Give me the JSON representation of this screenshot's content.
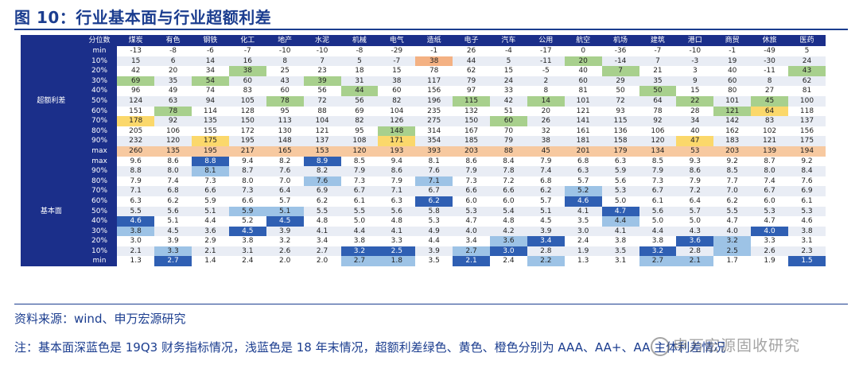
{
  "title": "图 10：行业基本面与行业超额利差",
  "header_label": "分位数",
  "industries": [
    "煤炭",
    "有色",
    "钢铁",
    "化工",
    "地产",
    "水泥",
    "机械",
    "电气",
    "造纸",
    "电子",
    "汽车",
    "公用",
    "航空",
    "机场",
    "建筑",
    "港口",
    "商贸",
    "休旅",
    "医药"
  ],
  "sections": [
    {
      "name": "超额利差",
      "rows": [
        {
          "label": "min",
          "values": [
            "-13",
            "-8",
            "-6",
            "-7",
            "-10",
            "-10",
            "-8",
            "-29",
            "-1",
            "26",
            "-4",
            "-17",
            "0",
            "-36",
            "-7",
            "-10",
            "-1",
            "-49",
            "5"
          ]
        },
        {
          "label": "10%",
          "values": [
            "15",
            "6",
            "14",
            "16",
            "8",
            "7",
            "5",
            "-7",
            "38",
            "44",
            "5",
            "-11",
            "20",
            "-14",
            "7",
            "-3",
            "19",
            "-30",
            "24"
          ]
        },
        {
          "label": "20%",
          "values": [
            "42",
            "20",
            "34",
            "38",
            "25",
            "23",
            "18",
            "15",
            "78",
            "62",
            "15",
            "-5",
            "40",
            "7",
            "21",
            "3",
            "40",
            "-11",
            "43"
          ]
        },
        {
          "label": "30%",
          "values": [
            "69",
            "35",
            "54",
            "60",
            "43",
            "39",
            "31",
            "38",
            "117",
            "79",
            "24",
            "2",
            "60",
            "29",
            "35",
            "9",
            "60",
            "8",
            "62"
          ]
        },
        {
          "label": "40%",
          "values": [
            "96",
            "49",
            "74",
            "83",
            "60",
            "56",
            "44",
            "60",
            "156",
            "97",
            "33",
            "8",
            "81",
            "50",
            "50",
            "15",
            "80",
            "27",
            "81"
          ]
        },
        {
          "label": "50%",
          "values": [
            "124",
            "63",
            "94",
            "105",
            "78",
            "72",
            "56",
            "82",
            "196",
            "115",
            "42",
            "14",
            "101",
            "72",
            "64",
            "22",
            "101",
            "45",
            "100"
          ]
        },
        {
          "label": "60%",
          "values": [
            "151",
            "78",
            "114",
            "128",
            "95",
            "88",
            "69",
            "104",
            "235",
            "132",
            "51",
            "20",
            "121",
            "93",
            "78",
            "28",
            "121",
            "64",
            "118"
          ]
        },
        {
          "label": "70%",
          "values": [
            "178",
            "92",
            "135",
            "150",
            "113",
            "104",
            "82",
            "126",
            "275",
            "150",
            "60",
            "26",
            "141",
            "115",
            "92",
            "34",
            "142",
            "83",
            "137"
          ]
        },
        {
          "label": "80%",
          "values": [
            "205",
            "106",
            "155",
            "172",
            "130",
            "121",
            "95",
            "148",
            "314",
            "167",
            "70",
            "32",
            "161",
            "136",
            "106",
            "40",
            "162",
            "102",
            "156"
          ]
        },
        {
          "label": "90%",
          "values": [
            "232",
            "120",
            "175",
            "195",
            "148",
            "137",
            "108",
            "171",
            "354",
            "185",
            "79",
            "38",
            "181",
            "158",
            "120",
            "47",
            "183",
            "121",
            "175"
          ]
        },
        {
          "label": "max",
          "values": [
            "260",
            "135",
            "195",
            "217",
            "165",
            "153",
            "120",
            "193",
            "393",
            "203",
            "88",
            "45",
            "201",
            "179",
            "134",
            "53",
            "203",
            "139",
            "194"
          ]
        }
      ]
    },
    {
      "name": "基本面",
      "rows": [
        {
          "label": "max",
          "values": [
            "9.6",
            "8.6",
            "8.8",
            "9.4",
            "8.2",
            "8.9",
            "8.5",
            "9.4",
            "8.1",
            "8.6",
            "8.4",
            "7.9",
            "6.8",
            "6.3",
            "8.5",
            "9.3",
            "9.2",
            "8.7",
            "9.2"
          ]
        },
        {
          "label": "90%",
          "values": [
            "8.8",
            "8.0",
            "8.1",
            "8.7",
            "7.6",
            "8.2",
            "7.9",
            "8.6",
            "7.6",
            "7.9",
            "7.8",
            "7.4",
            "6.3",
            "5.9",
            "7.9",
            "8.6",
            "8.5",
            "8.0",
            "8.4"
          ]
        },
        {
          "label": "80%",
          "values": [
            "7.9",
            "7.4",
            "7.3",
            "8.0",
            "7.0",
            "7.6",
            "7.3",
            "7.9",
            "7.1",
            "7.3",
            "7.2",
            "6.8",
            "5.7",
            "5.6",
            "7.3",
            "7.9",
            "7.7",
            "7.4",
            "7.6"
          ]
        },
        {
          "label": "70%",
          "values": [
            "7.1",
            "6.8",
            "6.6",
            "7.3",
            "6.4",
            "6.9",
            "6.7",
            "7.1",
            "6.7",
            "6.6",
            "6.6",
            "6.2",
            "5.2",
            "5.3",
            "6.7",
            "7.2",
            "7.0",
            "6.7",
            "6.9"
          ]
        },
        {
          "label": "60%",
          "values": [
            "6.3",
            "6.2",
            "5.9",
            "6.6",
            "5.7",
            "6.2",
            "6.1",
            "6.3",
            "6.2",
            "6.0",
            "6.0",
            "5.7",
            "4.6",
            "5.0",
            "6.1",
            "6.4",
            "6.2",
            "6.0",
            "6.1"
          ]
        },
        {
          "label": "50%",
          "values": [
            "5.5",
            "5.6",
            "5.1",
            "5.9",
            "5.1",
            "5.5",
            "5.5",
            "5.6",
            "5.8",
            "5.3",
            "5.4",
            "5.1",
            "4.1",
            "4.7",
            "5.6",
            "5.7",
            "5.5",
            "5.3",
            "5.3"
          ]
        },
        {
          "label": "40%",
          "values": [
            "4.6",
            "5.1",
            "4.4",
            "5.2",
            "4.5",
            "4.8",
            "5.0",
            "4.8",
            "5.3",
            "4.7",
            "4.8",
            "4.5",
            "3.5",
            "4.4",
            "5.0",
            "5.0",
            "4.7",
            "4.7",
            "4.6"
          ]
        },
        {
          "label": "30%",
          "values": [
            "3.8",
            "4.5",
            "3.6",
            "4.5",
            "3.9",
            "4.1",
            "4.4",
            "4.1",
            "4.9",
            "4.0",
            "4.2",
            "3.9",
            "3.0",
            "4.1",
            "4.4",
            "4.3",
            "4.0",
            "4.0",
            "3.8"
          ]
        },
        {
          "label": "20%",
          "values": [
            "3.0",
            "3.9",
            "2.9",
            "3.8",
            "3.2",
            "3.4",
            "3.8",
            "3.3",
            "4.4",
            "3.4",
            "3.6",
            "3.4",
            "2.4",
            "3.8",
            "3.8",
            "3.6",
            "3.2",
            "3.3",
            "3.1"
          ]
        },
        {
          "label": "10%",
          "values": [
            "2.1",
            "3.3",
            "2.1",
            "3.1",
            "2.6",
            "2.7",
            "3.2",
            "2.5",
            "3.9",
            "2.7",
            "3.0",
            "2.8",
            "1.9",
            "3.5",
            "3.2",
            "2.8",
            "2.5",
            "2.6",
            "2.3"
          ]
        },
        {
          "label": "min",
          "values": [
            "1.3",
            "2.7",
            "1.4",
            "2.4",
            "2.0",
            "2.0",
            "2.7",
            "1.8",
            "3.5",
            "2.1",
            "2.4",
            "2.2",
            "1.3",
            "3.1",
            "2.7",
            "2.1",
            "1.7",
            "1.9",
            "1.5"
          ]
        }
      ]
    }
  ],
  "highlights": {
    "colors": {
      "green": "#a8d08d",
      "yellow": "#fbd86b",
      "orange": "#f4b183",
      "dark_blue": "#2f5fb3",
      "light_blue": "#9dc3e6"
    },
    "cells": [
      {
        "s": 0,
        "r": 1,
        "c": 8,
        "k": "c-orange"
      },
      {
        "s": 0,
        "r": 1,
        "c": 12,
        "k": "c-green"
      },
      {
        "s": 0,
        "r": 2,
        "c": 3,
        "k": "c-green"
      },
      {
        "s": 0,
        "r": 2,
        "c": 13,
        "k": "c-green"
      },
      {
        "s": 0,
        "r": 2,
        "c": 18,
        "k": "c-green"
      },
      {
        "s": 0,
        "r": 3,
        "c": 0,
        "k": "c-green"
      },
      {
        "s": 0,
        "r": 3,
        "c": 2,
        "k": "c-green"
      },
      {
        "s": 0,
        "r": 3,
        "c": 5,
        "k": "c-green"
      },
      {
        "s": 0,
        "r": 4,
        "c": 6,
        "k": "c-green"
      },
      {
        "s": 0,
        "r": 4,
        "c": 14,
        "k": "c-green"
      },
      {
        "s": 0,
        "r": 5,
        "c": 4,
        "k": "c-green"
      },
      {
        "s": 0,
        "r": 5,
        "c": 9,
        "k": "c-green"
      },
      {
        "s": 0,
        "r": 5,
        "c": 11,
        "k": "c-green"
      },
      {
        "s": 0,
        "r": 5,
        "c": 15,
        "k": "c-green"
      },
      {
        "s": 0,
        "r": 5,
        "c": 17,
        "k": "c-green"
      },
      {
        "s": 0,
        "r": 6,
        "c": 1,
        "k": "c-green"
      },
      {
        "s": 0,
        "r": 6,
        "c": 16,
        "k": "c-green"
      },
      {
        "s": 0,
        "r": 6,
        "c": 17,
        "k": "c-yellow"
      },
      {
        "s": 0,
        "r": 7,
        "c": 0,
        "k": "c-yellow"
      },
      {
        "s": 0,
        "r": 7,
        "c": 10,
        "k": "c-green"
      },
      {
        "s": 0,
        "r": 8,
        "c": 7,
        "k": "c-green"
      },
      {
        "s": 0,
        "r": 9,
        "c": 2,
        "k": "c-yellow"
      },
      {
        "s": 0,
        "r": 9,
        "c": 7,
        "k": "c-yellow"
      },
      {
        "s": 0,
        "r": 9,
        "c": 15,
        "k": "c-yellow"
      },
      {
        "s": 1,
        "r": 0,
        "c": 2,
        "k": "c-dark"
      },
      {
        "s": 1,
        "r": 0,
        "c": 5,
        "k": "c-dark"
      },
      {
        "s": 1,
        "r": 1,
        "c": 2,
        "k": "c-light"
      },
      {
        "s": 1,
        "r": 2,
        "c": 5,
        "k": "c-light"
      },
      {
        "s": 1,
        "r": 2,
        "c": 8,
        "k": "c-light"
      },
      {
        "s": 1,
        "r": 3,
        "c": 12,
        "k": "c-light"
      },
      {
        "s": 1,
        "r": 4,
        "c": 8,
        "k": "c-dark"
      },
      {
        "s": 1,
        "r": 4,
        "c": 12,
        "k": "c-dark"
      },
      {
        "s": 1,
        "r": 5,
        "c": 3,
        "k": "c-light"
      },
      {
        "s": 1,
        "r": 5,
        "c": 4,
        "k": "c-light"
      },
      {
        "s": 1,
        "r": 5,
        "c": 13,
        "k": "c-dark"
      },
      {
        "s": 1,
        "r": 6,
        "c": 0,
        "k": "c-dark"
      },
      {
        "s": 1,
        "r": 6,
        "c": 4,
        "k": "c-dark"
      },
      {
        "s": 1,
        "r": 6,
        "c": 13,
        "k": "c-light"
      },
      {
        "s": 1,
        "r": 7,
        "c": 0,
        "k": "c-light"
      },
      {
        "s": 1,
        "r": 7,
        "c": 3,
        "k": "c-dark"
      },
      {
        "s": 1,
        "r": 7,
        "c": 17,
        "k": "c-dark"
      },
      {
        "s": 1,
        "r": 8,
        "c": 10,
        "k": "c-light"
      },
      {
        "s": 1,
        "r": 8,
        "c": 11,
        "k": "c-dark"
      },
      {
        "s": 1,
        "r": 8,
        "c": 15,
        "k": "c-dark"
      },
      {
        "s": 1,
        "r": 8,
        "c": 16,
        "k": "c-light"
      },
      {
        "s": 1,
        "r": 9,
        "c": 1,
        "k": "c-light"
      },
      {
        "s": 1,
        "r": 9,
        "c": 6,
        "k": "c-dark"
      },
      {
        "s": 1,
        "r": 9,
        "c": 7,
        "k": "c-dark"
      },
      {
        "s": 1,
        "r": 9,
        "c": 9,
        "k": "c-light"
      },
      {
        "s": 1,
        "r": 9,
        "c": 10,
        "k": "c-dark"
      },
      {
        "s": 1,
        "r": 9,
        "c": 14,
        "k": "c-dark"
      },
      {
        "s": 1,
        "r": 9,
        "c": 16,
        "k": "c-light"
      },
      {
        "s": 1,
        "r": 10,
        "c": 1,
        "k": "c-dark"
      },
      {
        "s": 1,
        "r": 10,
        "c": 6,
        "k": "c-light"
      },
      {
        "s": 1,
        "r": 10,
        "c": 7,
        "k": "c-light"
      },
      {
        "s": 1,
        "r": 10,
        "c": 9,
        "k": "c-dark"
      },
      {
        "s": 1,
        "r": 10,
        "c": 11,
        "k": "c-light"
      },
      {
        "s": 1,
        "r": 10,
        "c": 14,
        "k": "c-light"
      },
      {
        "s": 1,
        "r": 10,
        "c": 15,
        "k": "c-light"
      },
      {
        "s": 1,
        "r": 10,
        "c": 18,
        "k": "c-dark"
      }
    ]
  },
  "source": "资料来源：wind、申万宏源研究",
  "note": "注：基本面深蓝色是 19Q3 财务指标情况，浅蓝色是 18 年末情况，超额利差绿色、黄色、橙色分别为 AAA、AA+、AA 主体利差情况",
  "watermark": "申万宏源固收研究",
  "watermark_icon": "wechat-icon"
}
